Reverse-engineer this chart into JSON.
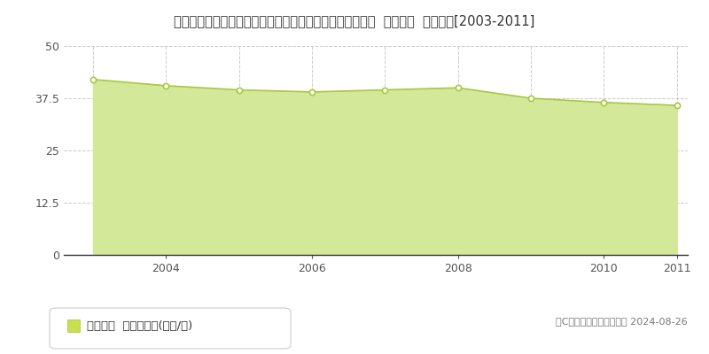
{
  "title": "埼玉県さいたま市見沼区大字小深作字藤十郎原２６６番５  基準地価  地価推移[2003-2011]",
  "years": [
    2003,
    2004,
    2005,
    2006,
    2007,
    2008,
    2009,
    2010,
    2011
  ],
  "values": [
    42.0,
    40.5,
    39.5,
    39.0,
    39.5,
    40.0,
    37.5,
    36.5,
    35.8
  ],
  "ylim": [
    0,
    50
  ],
  "yticks": [
    0,
    12.5,
    25,
    37.5,
    50
  ],
  "ytick_labels": [
    "0",
    "12.5",
    "25",
    "37.5",
    "50"
  ],
  "xtick_labels": [
    "2004",
    "2006",
    "2008",
    "2010",
    "2011"
  ],
  "xtick_positions": [
    2004,
    2006,
    2008,
    2010,
    2011
  ],
  "line_color": "#a8c840",
  "fill_color": "#d4e89a",
  "marker_color": "#ffffff",
  "marker_edge_color": "#a8c840",
  "grid_color": "#aaaaaa",
  "background_color": "#ffffff",
  "legend_label": "基準地価  平均坪単価(万円/坪)",
  "legend_color": "#c8e050",
  "copyright_text": "（C）土地価格ドットコム 2024-08-26",
  "title_fontsize": 10.5,
  "axis_fontsize": 9,
  "legend_fontsize": 9.5
}
